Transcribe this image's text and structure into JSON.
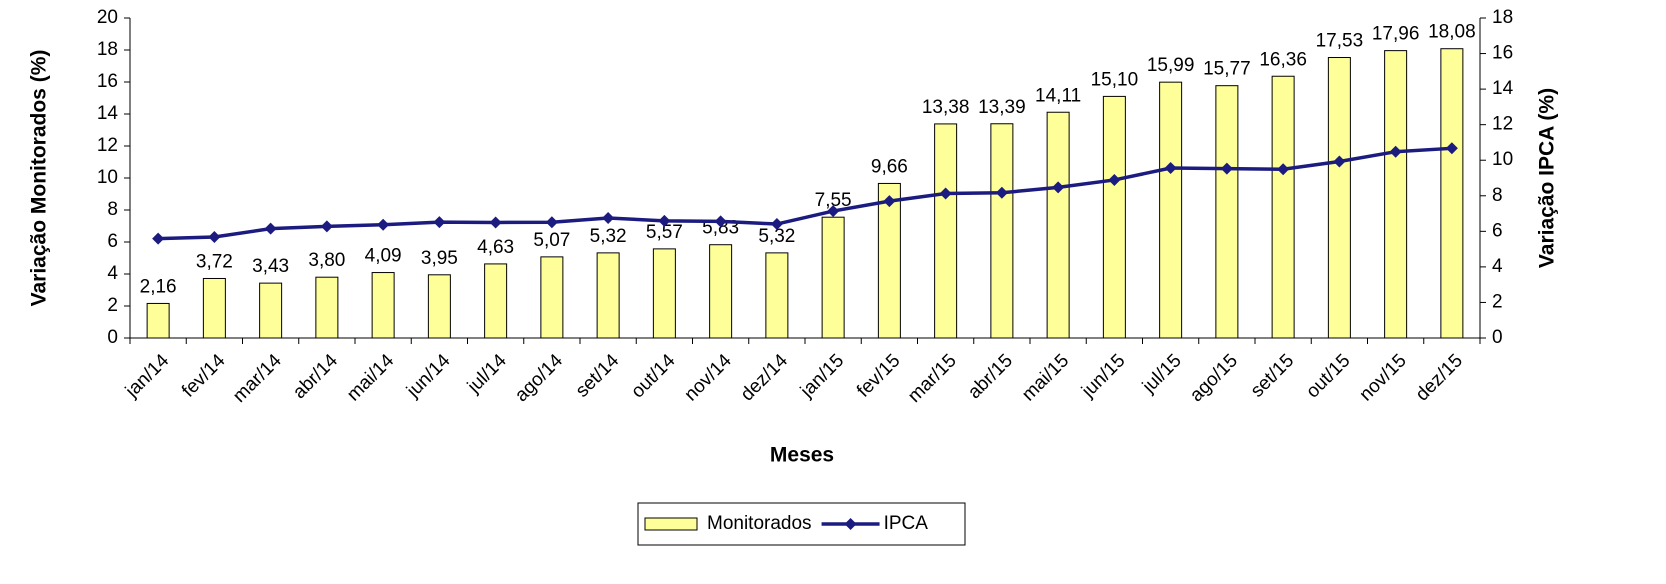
{
  "chart_data": {
    "type": "bar-line",
    "x_label": "Meses",
    "y_label": "Variação Monitorados (%)",
    "y2_label": "Variação IPCA (%)",
    "categories": [
      "jan/14",
      "fev/14",
      "mar/14",
      "abr/14",
      "mai/14",
      "jun/14",
      "jul/14",
      "ago/14",
      "set/14",
      "out/14",
      "nov/14",
      "dez/14",
      "jan/15",
      "fev/15",
      "mar/15",
      "abr/15",
      "mai/15",
      "jun/15",
      "jul/15",
      "ago/15",
      "set/15",
      "out/15",
      "nov/15",
      "dez/15"
    ],
    "series": [
      {
        "name": "Monitorados",
        "type": "bar",
        "color": "#ffff99",
        "values": [
          2.16,
          3.72,
          3.43,
          3.8,
          4.09,
          3.95,
          4.63,
          5.07,
          5.32,
          5.57,
          5.83,
          5.32,
          7.55,
          9.66,
          13.38,
          13.39,
          14.11,
          15.1,
          15.99,
          15.77,
          16.36,
          17.53,
          17.96,
          18.08
        ],
        "value_labels": [
          "2,16",
          "3,72",
          "3,43",
          "3,80",
          "4,09",
          "3,95",
          "4,63",
          "5,07",
          "5,32",
          "5,57",
          "5,83",
          "5,32",
          "7,55",
          "9,66",
          "13,38",
          "13,39",
          "14,11",
          "15,10",
          "15,99",
          "15,77",
          "16,36",
          "17,53",
          "17,96",
          "18,08"
        ]
      },
      {
        "name": "IPCA",
        "type": "line",
        "axis": "y2",
        "color": "#1c1c80",
        "values": [
          5.59,
          5.68,
          6.15,
          6.28,
          6.37,
          6.52,
          6.5,
          6.51,
          6.75,
          6.59,
          6.56,
          6.41,
          7.14,
          7.7,
          8.13,
          8.17,
          8.47,
          8.89,
          9.56,
          9.53,
          9.49,
          9.93,
          10.48,
          10.67
        ]
      }
    ],
    "ylim": [
      0,
      20
    ],
    "yticks": [
      0,
      2,
      4,
      6,
      8,
      10,
      12,
      14,
      16,
      18,
      20
    ],
    "y2lim": [
      0,
      18
    ],
    "y2ticks": [
      0,
      2,
      4,
      6,
      8,
      10,
      12,
      14,
      16,
      18
    ],
    "legend": "bottom"
  }
}
